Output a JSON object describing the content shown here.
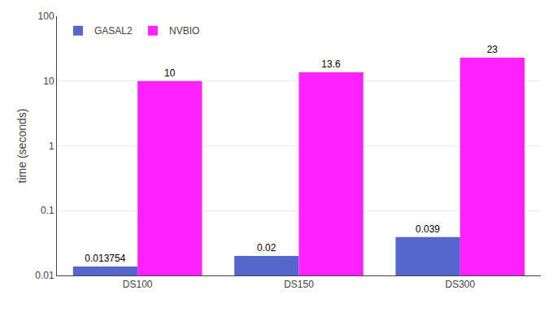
{
  "chart_data": {
    "type": "bar",
    "categories": [
      "DS100",
      "DS150",
      "DS300"
    ],
    "series": [
      {
        "name": "GASAL2",
        "color": "#5566cc",
        "values": [
          0.013754,
          0.02,
          0.039
        ]
      },
      {
        "name": "NVBIO",
        "color": "#ff22ff",
        "values": [
          10,
          13.6,
          23
        ]
      }
    ],
    "ylabel": "time (seconds)",
    "log": "y",
    "ylim": [
      0.01,
      100
    ],
    "yticks": [
      0.01,
      0.1,
      1,
      10,
      100
    ],
    "grid": true,
    "legend": "upper left",
    "data_labels": true
  }
}
